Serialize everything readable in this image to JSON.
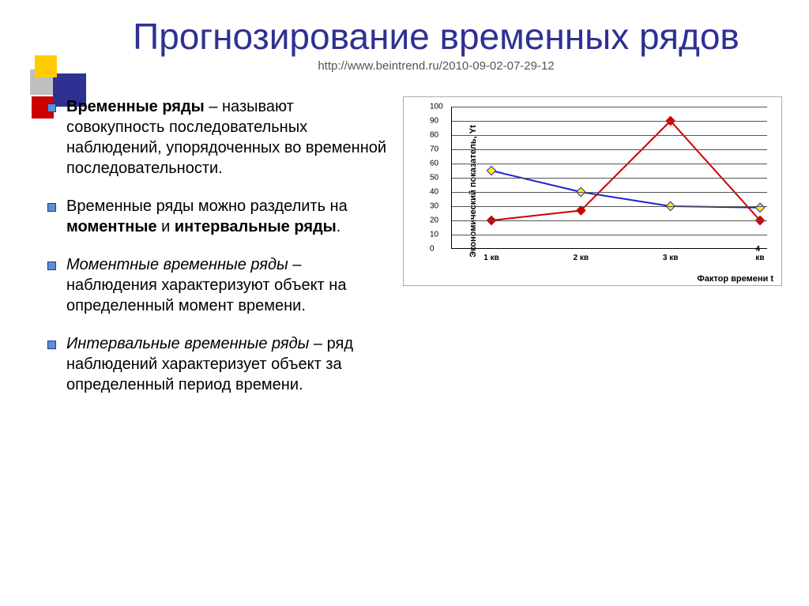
{
  "title": "Прогнозирование временных рядов",
  "subtitle": "http://www.beintrend.ru/2010-09-02-07-29-12",
  "bullets": [
    {
      "html": "<span class='b'>Временные ряды</span> – называют совокупность последовательных наблюдений, упорядоченных во временной последовательности."
    },
    {
      "html": "Временные ряды можно разделить на <span class='b'>моментные</span> и <span class='b'>интервальные ряды</span>."
    },
    {
      "html": "<span class='i'>Моментные временные ряды</span> – наблюдения характеризуют объект на определенный момент времени."
    },
    {
      "html": "<span class='i'>Интервальные временные ряды</span> – ряд наблюдений характеризует объект за определенный период времени."
    }
  ],
  "chart": {
    "type": "line",
    "ylabel": "Экономический показатель, Yt",
    "xlabel": "Фактор времени t",
    "ylim": [
      0,
      100
    ],
    "ytick_step": 10,
    "x_categories": [
      "1 кв",
      "2 кв",
      "3 кв",
      "4 кв"
    ],
    "series": [
      {
        "name": "blue",
        "color": "#2020cc",
        "marker_fill": "#ffee00",
        "values": [
          55,
          40,
          30,
          29
        ],
        "width": 2
      },
      {
        "name": "red",
        "color": "#cc0000",
        "marker_fill": "#cc0000",
        "values": [
          20,
          27,
          90,
          20
        ],
        "width": 2
      }
    ],
    "grid_color": "#555555",
    "background": "#ffffff"
  },
  "decoration_colors": {
    "blue": "#2e3192",
    "yellow": "#ffcc00",
    "red": "#cc0000",
    "gray": "#bfbfbf"
  }
}
